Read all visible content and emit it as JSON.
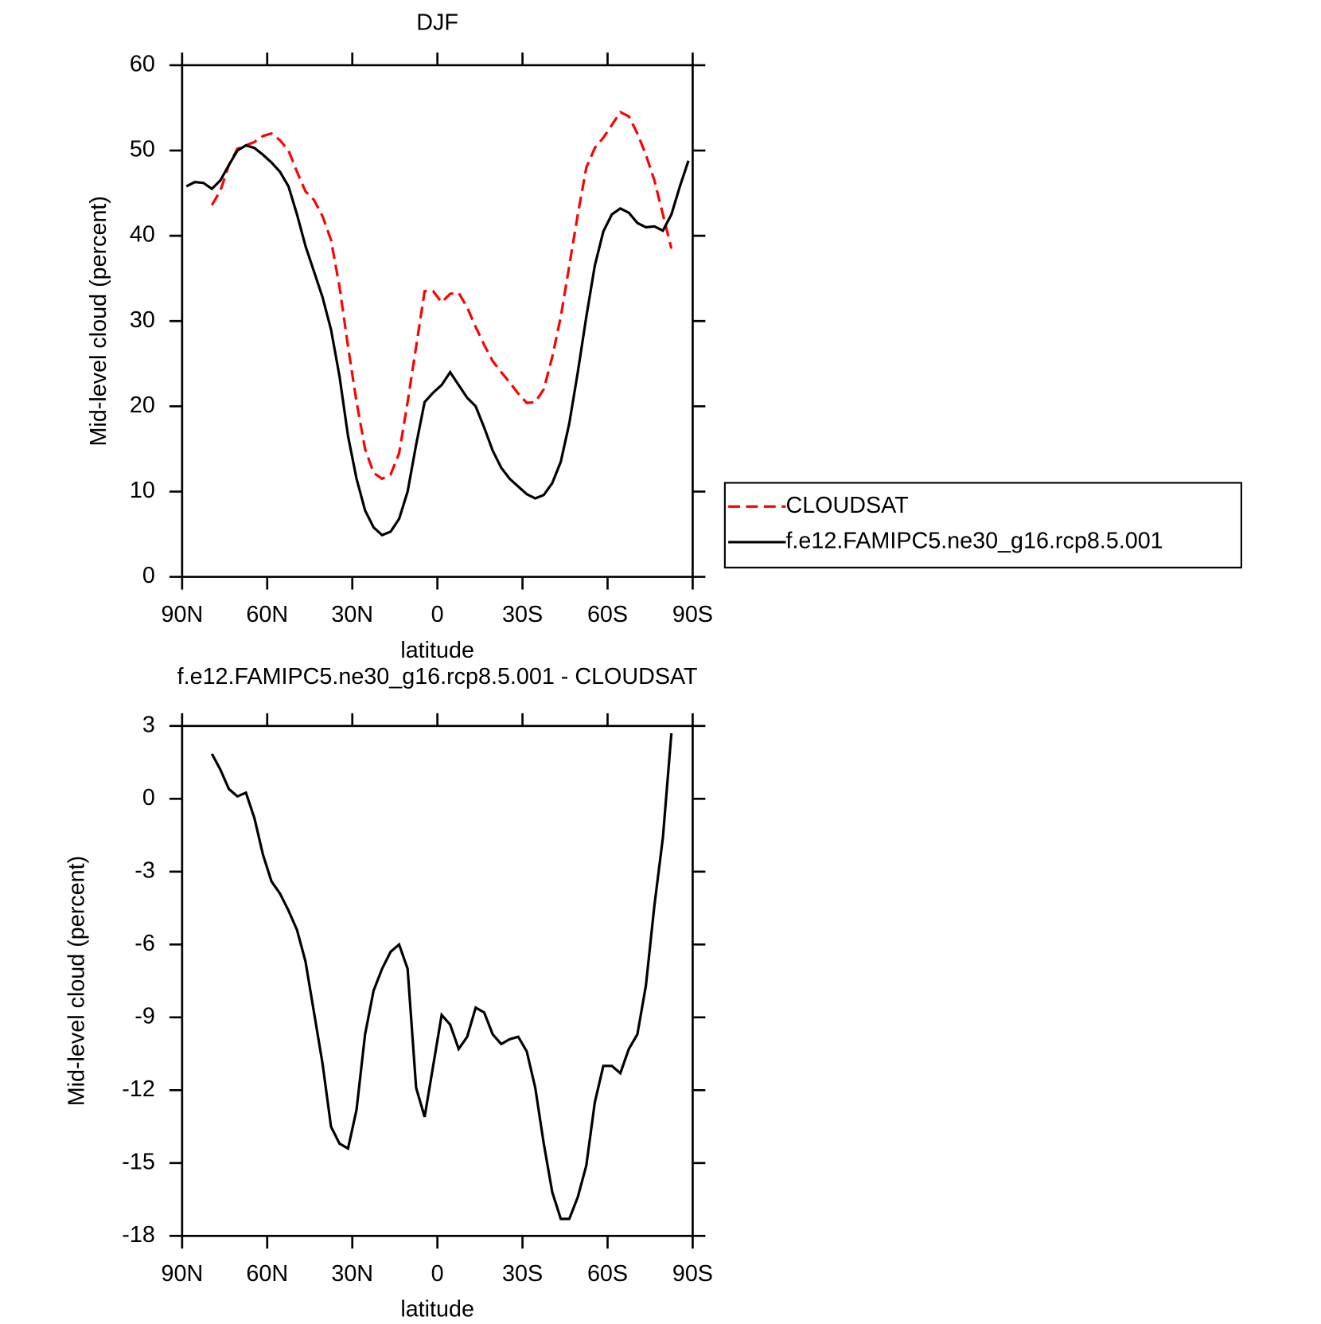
{
  "chart_data": [
    {
      "type": "line",
      "title": "DJF",
      "xlabel": "latitude",
      "ylabel": "Mid-level cloud (percent)",
      "x": [
        88.5,
        85.5,
        82.5,
        79.5,
        76.5,
        73.5,
        70.5,
        67.5,
        64.5,
        61.5,
        58.5,
        55.5,
        52.5,
        49.5,
        46.5,
        43.5,
        40.5,
        37.5,
        34.5,
        31.5,
        28.5,
        25.5,
        22.5,
        19.5,
        16.5,
        13.5,
        10.5,
        7.5,
        4.5,
        1.5,
        -1.5,
        -4.5,
        -7.5,
        -10.5,
        -13.5,
        -16.5,
        -19.5,
        -22.5,
        -25.5,
        -28.5,
        -31.5,
        -34.5,
        -37.5,
        -40.5,
        -43.5,
        -46.5,
        -49.5,
        -52.5,
        -55.5,
        -58.5,
        -61.5,
        -64.5,
        -67.5,
        -70.5,
        -73.5,
        -76.5,
        -79.5,
        -82.5,
        -85.5,
        -88.5
      ],
      "xlim": [
        90,
        -90
      ],
      "xticks": [
        {
          "value": 90,
          "label": "90N"
        },
        {
          "value": 60,
          "label": "60N"
        },
        {
          "value": 30,
          "label": "30N"
        },
        0,
        {
          "value": -30,
          "label": "30S"
        },
        {
          "value": -60,
          "label": "60S"
        },
        {
          "value": -90,
          "label": "90S"
        }
      ],
      "ylim": [
        0,
        60
      ],
      "yticks": [
        0,
        10,
        20,
        30,
        40,
        50,
        60
      ],
      "series": [
        {
          "name": "CLOUDSAT",
          "color": "#ff0000",
          "dashed": true,
          "values": [
            null,
            null,
            null,
            43.6,
            45.3,
            48.3,
            50.2,
            50.6,
            51.0,
            51.7,
            52.0,
            51.2,
            50.0,
            47.5,
            45.2,
            44.2,
            42.3,
            39.5,
            34.0,
            27.0,
            20.5,
            15.0,
            12.2,
            11.5,
            12.0,
            14.5,
            20.5,
            27.0,
            33.5,
            33.5,
            32.2,
            33.2,
            33.3,
            31.6,
            29.3,
            27.2,
            25.3,
            24.0,
            22.8,
            21.5,
            20.4,
            20.5,
            22.0,
            25.8,
            30.5,
            36.5,
            42.5,
            48.0,
            50.3,
            51.5,
            53.0,
            54.5,
            54.0,
            52.0,
            49.5,
            46.5,
            42.5,
            38.5,
            null,
            null
          ]
        },
        {
          "name": "f.e12.FAMIPC5.ne30_g16.rcp8.5.001",
          "color": "#000000",
          "dashed": false,
          "values": [
            45.8,
            46.3,
            46.2,
            45.5,
            46.5,
            48.3,
            50.0,
            50.6,
            50.3,
            49.5,
            48.6,
            47.5,
            45.8,
            42.5,
            38.8,
            35.8,
            32.8,
            29.0,
            23.5,
            16.5,
            11.5,
            7.8,
            5.8,
            4.9,
            5.3,
            6.8,
            10.0,
            15.5,
            20.5,
            21.6,
            22.5,
            24.0,
            22.5,
            21.0,
            20.0,
            17.5,
            14.8,
            12.8,
            11.5,
            10.6,
            9.7,
            9.2,
            9.6,
            11.0,
            13.5,
            18.0,
            24.0,
            30.5,
            36.5,
            40.5,
            42.5,
            43.2,
            42.7,
            41.5,
            41.0,
            41.1,
            40.6,
            42.5,
            45.8,
            48.8
          ]
        }
      ]
    },
    {
      "type": "line",
      "title": "f.e12.FAMIPC5.ne30_g16.rcp8.5.001 - CLOUDSAT",
      "xlabel": "latitude",
      "ylabel": "Mid-level cloud (percent)",
      "x": [
        79.5,
        76.5,
        73.5,
        70.5,
        67.5,
        64.5,
        61.5,
        58.5,
        55.5,
        52.5,
        49.5,
        46.5,
        43.5,
        40.5,
        37.5,
        34.5,
        31.5,
        28.5,
        25.5,
        22.5,
        19.5,
        16.5,
        13.5,
        10.5,
        7.5,
        4.5,
        1.5,
        -1.5,
        -4.5,
        -7.5,
        -10.5,
        -13.5,
        -16.5,
        -19.5,
        -22.5,
        -25.5,
        -28.5,
        -31.5,
        -34.5,
        -37.5,
        -40.5,
        -43.5,
        -46.5,
        -49.5,
        -52.5,
        -55.5,
        -58.5,
        -61.5,
        -64.5,
        -67.5,
        -70.5,
        -73.5,
        -76.5,
        -79.5,
        -82.5
      ],
      "xlim": [
        90,
        -90
      ],
      "xticks": [
        {
          "value": 90,
          "label": "90N"
        },
        {
          "value": 60,
          "label": "60N"
        },
        {
          "value": 30,
          "label": "30N"
        },
        0,
        {
          "value": -30,
          "label": "30S"
        },
        {
          "value": -60,
          "label": "60S"
        },
        {
          "value": -90,
          "label": "90S"
        }
      ],
      "ylim": [
        -18,
        3
      ],
      "yticks": [
        -18,
        -15,
        -12,
        -9,
        -6,
        -3,
        0,
        3
      ],
      "color": "#000000",
      "values": [
        1.85,
        1.2,
        0.4,
        0.1,
        0.25,
        -0.8,
        -2.3,
        -3.4,
        -3.9,
        -4.6,
        -5.4,
        -6.7,
        -8.8,
        -10.9,
        -13.5,
        -14.2,
        -14.4,
        -12.8,
        -9.7,
        -7.9,
        -7.0,
        -6.3,
        -6.0,
        -7.0,
        -11.9,
        -13.1,
        -11.0,
        -8.9,
        -9.3,
        -10.3,
        -9.8,
        -8.6,
        -8.8,
        -9.7,
        -10.1,
        -9.9,
        -9.8,
        -10.4,
        -11.9,
        -14.2,
        -16.2,
        -17.3,
        -17.3,
        -16.4,
        -15.1,
        -12.5,
        -11.0,
        -11.0,
        -11.3,
        -10.3,
        -9.7,
        -7.7,
        -4.4,
        -1.6,
        2.7
      ]
    }
  ]
}
